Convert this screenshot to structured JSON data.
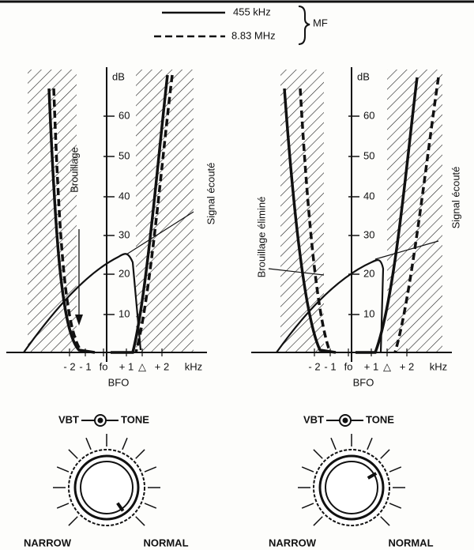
{
  "legend": {
    "items": [
      {
        "label": "455 kHz"
      },
      {
        "label": "8.83 MHz"
      }
    ],
    "group_label": "MF"
  },
  "panels": [
    {
      "y_axis_label": "dB",
      "y_ticks": [
        "60",
        "50",
        "40",
        "30",
        "20",
        "10"
      ],
      "x_ticks": [
        "- 2",
        "- 1",
        "fo",
        "+ 1",
        "△",
        "+ 2",
        "kHz"
      ],
      "x_axis_label": "BFO",
      "annotations": [
        "Brouillage",
        "Signal écouté"
      ],
      "knob": {
        "left_label": "VBT",
        "right_label": "TONE",
        "min_label": "NARROW",
        "max_label": "NORMAL"
      }
    },
    {
      "y_axis_label": "dB",
      "y_ticks": [
        "60",
        "50",
        "40",
        "30",
        "20",
        "10"
      ],
      "x_ticks": [
        "- 2",
        "- 1",
        "fo",
        "+ 1",
        "△",
        "+ 2",
        "kHz"
      ],
      "x_axis_label": "BFO",
      "annotations": [
        "Brouillage éliminé",
        "Signal écouté"
      ],
      "knob": {
        "left_label": "VBT",
        "right_label": "TONE",
        "min_label": "NARROW",
        "max_label": "NORMAL"
      }
    }
  ]
}
